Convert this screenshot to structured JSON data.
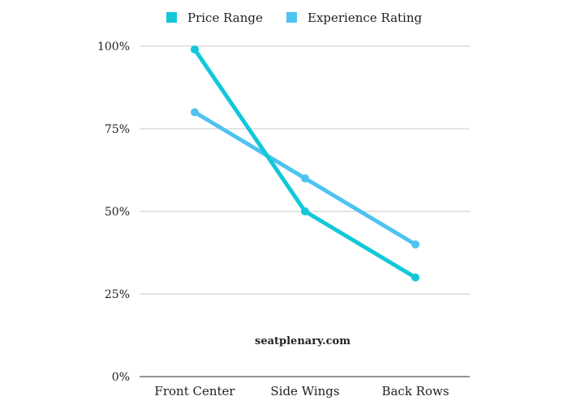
{
  "watermark": "seatplenary.com",
  "chart_data": {
    "type": "line",
    "categories": [
      "Front Center",
      "Side Wings",
      "Back Rows"
    ],
    "series": [
      {
        "name": "Price Range",
        "values": [
          99,
          50,
          30
        ],
        "color": "#12C8D8"
      },
      {
        "name": "Experience Rating",
        "values": [
          80,
          60,
          40
        ],
        "color": "#4FC3F0"
      }
    ],
    "yticks": [
      "0%",
      "25%",
      "50%",
      "75%",
      "100%"
    ],
    "ylim": [
      0,
      100
    ],
    "legend": "top-center",
    "grid": true
  }
}
